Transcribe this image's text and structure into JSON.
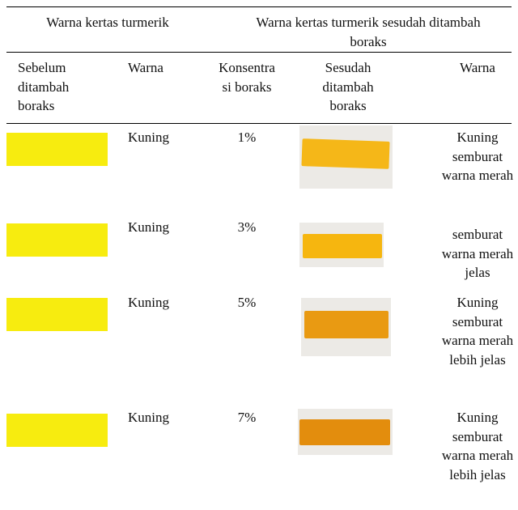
{
  "table": {
    "header_top": [
      "Warna kertas turmerik",
      "Warna kertas turmerik sesudah ditambah boraks"
    ],
    "header": [
      "Sebelum ditambah boraks",
      "Warna",
      "Konsentrasi boraks",
      "Sesudah ditambah boraks",
      "Warna"
    ],
    "rows": [
      [
        "Kuning",
        "1%",
        "Kuning semburat warna merah"
      ],
      [
        "Kuning",
        "3%",
        "semburat warna merah jelas"
      ],
      [
        "Kuning",
        "5%",
        "Kuning semburat warna merah lebih jelas"
      ],
      [
        "Kuning",
        "7%",
        "Kuning semburat warna merah lebih jelas"
      ]
    ]
  }
}
